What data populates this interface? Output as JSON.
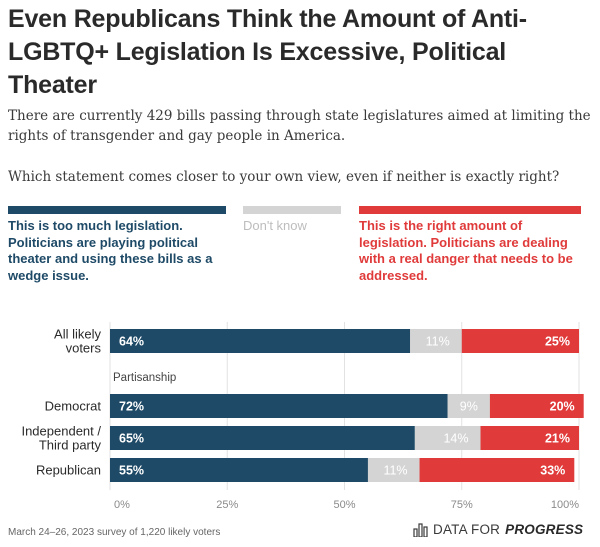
{
  "title": "Even Republicans Think the Amount of Anti-LGBTQ+ Legislation Is Excessive, Political Theater",
  "subtitle": "There are currently 429 bills passing through state legislatures aimed at limiting the rights of transgender and gay people in America.",
  "question": "Which statement comes closer to your own view, even if neither is exactly right?",
  "legend": [
    {
      "label": "This is too much legislation. Politicians are playing political theater and using these bills as a wedge issue.",
      "color": "#1e4a67"
    },
    {
      "label": "Don't know",
      "color": "#d4d4d4"
    },
    {
      "label": "This is the right amount of legislation. Politicians are dealing with a real danger that needs to be addressed.",
      "color": "#e03a3a"
    }
  ],
  "footer": {
    "note": "March 24–26, 2023 survey of 1,220 likely voters",
    "brand_prefix": "DATA FOR",
    "brand_bold": "PROGRESS"
  },
  "chart_data": {
    "type": "bar",
    "orientation": "horizontal",
    "stacked": true,
    "categories": [
      "All likely voters",
      "Democrat",
      "Independent / Third party",
      "Republican"
    ],
    "group_label": "Partisanship",
    "series": [
      {
        "values": [
          64,
          72,
          65,
          55
        ],
        "color": "#1e4a67"
      },
      {
        "values": [
          11,
          9,
          14,
          11
        ],
        "color": "#d4d4d4"
      },
      {
        "values": [
          25,
          20,
          21,
          33
        ],
        "color": "#e03a3a"
      }
    ],
    "x_ticks": [
      "0%",
      "25%",
      "50%",
      "75%",
      "100%"
    ],
    "xlim": [
      0,
      100
    ],
    "grid": true
  }
}
